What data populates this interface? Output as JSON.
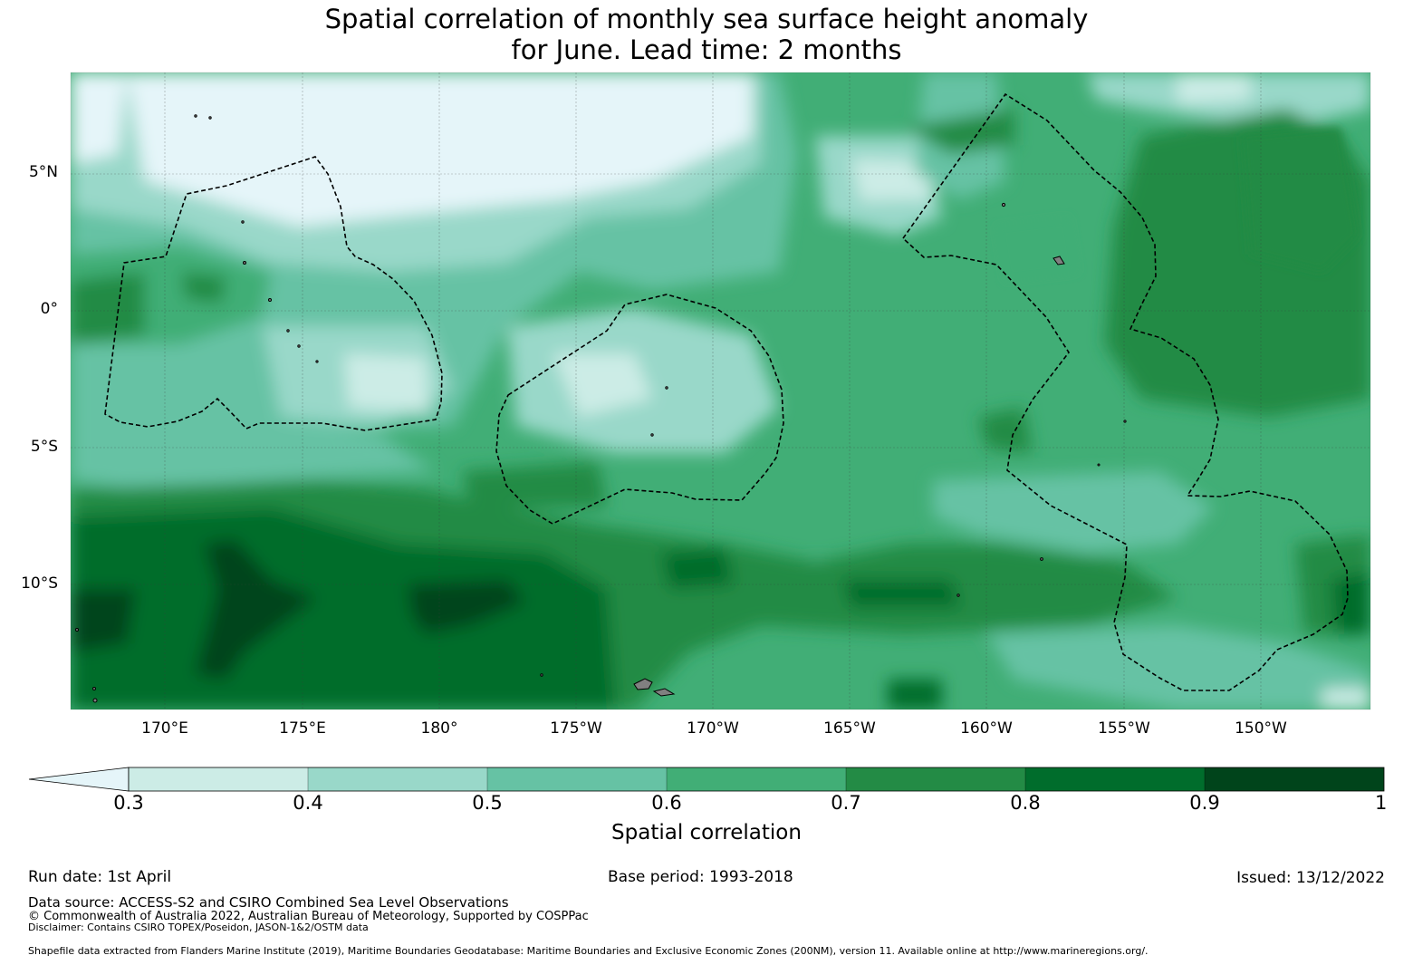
{
  "title": {
    "line1": "Spatial correlation of monthly sea surface height anomaly",
    "line2": "for June. Lead time: 2 months"
  },
  "map": {
    "lat_labels": [
      "5°N",
      "0°",
      "5°S",
      "10°S"
    ],
    "lon_labels": [
      "170°E",
      "175°E",
      "180°",
      "175°W",
      "170°W",
      "165°W",
      "160°W",
      "155°W",
      "150°W"
    ],
    "lat_range_deg": [
      -14.6,
      8.6
    ],
    "lon_range_deg_east": [
      166.6,
      213.9
    ],
    "land_color": "#808080",
    "boundary_style": "dashed black EEZ outlines"
  },
  "colorbar": {
    "title": "Spatial correlation",
    "tick_labels": [
      "0.3",
      "0.4",
      "0.5",
      "0.6",
      "0.7",
      "0.8",
      "0.9",
      "1"
    ],
    "colors": [
      "#e5f5f9",
      "#ccece6",
      "#99d8c9",
      "#66c2a4",
      "#41ae76",
      "#238b45",
      "#006d2c",
      "#00441b"
    ],
    "extend": "min"
  },
  "footer": {
    "run_date": "Run date: 1st April",
    "base_period": "Base period: 1993-2018",
    "issued": "Issued: 13/12/2022",
    "data_source": "Data source: ACCESS-S2 and CSIRO Combined Sea Level Observations",
    "copyright": "© Commonwealth of Australia 2022, Australian Bureau of Meteorology, Supported by COSPPac",
    "disclaimer": "Disclaimer: Contains CSIRO TOPEX/Poseidon, JASON-1&2/OSTM data",
    "shapefile": "Shapefile data extracted from Flanders Marine Institute (2019), Maritime Boundaries Geodatabase: Maritime Boundaries and Exclusive Economic Zones (200NM), version 11. Available online at http://www.marineregions.org/."
  }
}
